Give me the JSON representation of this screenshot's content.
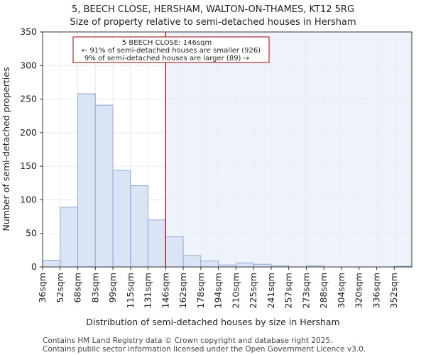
{
  "chart_data": {
    "type": "bar",
    "title": "5, BEECH CLOSE, HERSHAM, WALTON-ON-THAMES, KT12 5RG",
    "subtitle": "Size of property relative to semi-detached houses in Hersham",
    "xlabel": "Distribution of semi-detached houses by size in Hersham",
    "ylabel": "Number of semi-detached properties",
    "ylim": [
      0,
      350
    ],
    "yticks": [
      0,
      50,
      100,
      150,
      200,
      250,
      300,
      350
    ],
    "categories": [
      "36sqm",
      "52sqm",
      "68sqm",
      "83sqm",
      "99sqm",
      "115sqm",
      "131sqm",
      "146sqm",
      "162sqm",
      "178sqm",
      "194sqm",
      "210sqm",
      "225sqm",
      "241sqm",
      "257sqm",
      "273sqm",
      "288sqm",
      "304sqm",
      "320sqm",
      "336sqm",
      "352sqm"
    ],
    "values": [
      10,
      89,
      258,
      241,
      144,
      121,
      70,
      45,
      17,
      9,
      3,
      6,
      4,
      2,
      0,
      2,
      0,
      0,
      0,
      0,
      1
    ],
    "marker_index": 7,
    "annotation": {
      "line1": "5 BEECH CLOSE: 146sqm",
      "line2": "← 91% of semi-detached houses are smaller (926)",
      "line3": "9% of semi-detached houses are larger (89) →"
    },
    "colors": {
      "bar_fill": "#dae4f5",
      "bar_edge": "#8fa9d6",
      "marker": "#aa0000",
      "shade": "#eef2fb"
    }
  },
  "footer": {
    "line1": "Contains HM Land Registry data © Crown copyright and database right 2025.",
    "line2": "Contains public sector information licensed under the Open Government Licence v3.0."
  }
}
